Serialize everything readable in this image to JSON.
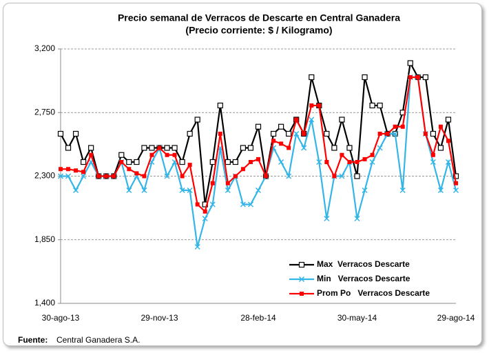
{
  "chart_data": {
    "type": "line",
    "title": "Precio semanal de Verracos de Descarte en Central Ganadera",
    "subtitle": "(Precio corriente: $ / Kilogramo)",
    "categories": [
      "30-ago-13",
      null,
      null,
      null,
      null,
      null,
      null,
      null,
      null,
      null,
      null,
      null,
      null,
      "29-nov-13",
      null,
      null,
      null,
      null,
      null,
      null,
      null,
      null,
      null,
      null,
      null,
      null,
      "28-feb-14",
      null,
      null,
      null,
      null,
      null,
      null,
      null,
      null,
      null,
      null,
      null,
      null,
      "30-may-14",
      null,
      null,
      null,
      null,
      null,
      null,
      null,
      null,
      null,
      null,
      null,
      null,
      "29-ago-14"
    ],
    "series": [
      {
        "name": "Max  Verracos Descarte",
        "color": "#000000",
        "marker": "open-square",
        "values": [
          2600,
          2500,
          2600,
          2400,
          2500,
          2300,
          2300,
          2300,
          2450,
          2400,
          2400,
          2500,
          2500,
          2500,
          2500,
          2500,
          2400,
          2600,
          2700,
          2100,
          2400,
          2800,
          2400,
          2400,
          2500,
          2500,
          2650,
          2300,
          2600,
          2650,
          2600,
          2700,
          2600,
          3000,
          2800,
          2600,
          2500,
          2700,
          2500,
          2300,
          3000,
          2800,
          2800,
          2600,
          2600,
          2750,
          3100,
          3000,
          3000,
          2600,
          2500,
          2700,
          2300
        ]
      },
      {
        "name": "Min   Verracos Descarte",
        "color": "#33b5e8",
        "marker": "x",
        "values": [
          2300,
          2300,
          2200,
          2300,
          2400,
          2300,
          2300,
          2300,
          2400,
          2200,
          2300,
          2200,
          2400,
          2500,
          2300,
          2400,
          2200,
          2200,
          1800,
          2000,
          2100,
          2500,
          2200,
          2300,
          2100,
          2100,
          2200,
          2300,
          2500,
          2400,
          2300,
          2600,
          2500,
          2700,
          2400,
          2000,
          2300,
          2300,
          2400,
          2000,
          2200,
          2400,
          2500,
          2600,
          2600,
          2200,
          3000,
          3000,
          2600,
          2400,
          2200,
          2400,
          2200
        ]
      },
      {
        "name": "Prom Po   Verracos Descarte",
        "color": "#ff0000",
        "marker": "square",
        "values": [
          2350,
          2350,
          2340,
          2330,
          2450,
          2300,
          2300,
          2300,
          2400,
          2350,
          2320,
          2300,
          2450,
          2500,
          2450,
          2450,
          2300,
          2380,
          2100,
          2050,
          2250,
          2600,
          2250,
          2300,
          2350,
          2400,
          2420,
          2300,
          2550,
          2530,
          2500,
          2700,
          2600,
          2800,
          2800,
          2400,
          2300,
          2450,
          2400,
          2400,
          2420,
          2450,
          2600,
          2600,
          2650,
          2650,
          3000,
          3000,
          2600,
          2450,
          2650,
          2550,
          2250
        ]
      }
    ],
    "ylim": [
      1400,
      3200
    ],
    "yticks": [
      {
        "value": 1400,
        "label": "1,400"
      },
      {
        "value": 1850,
        "label": "1,850"
      },
      {
        "value": 2300,
        "label": "2,300"
      },
      {
        "value": 2750,
        "label": "2,750"
      },
      {
        "value": 3200,
        "label": "3,200"
      }
    ],
    "grid": true,
    "legend": "lower-right"
  },
  "source": {
    "label": "Fuente:",
    "text": "Central Ganadera S.A."
  }
}
